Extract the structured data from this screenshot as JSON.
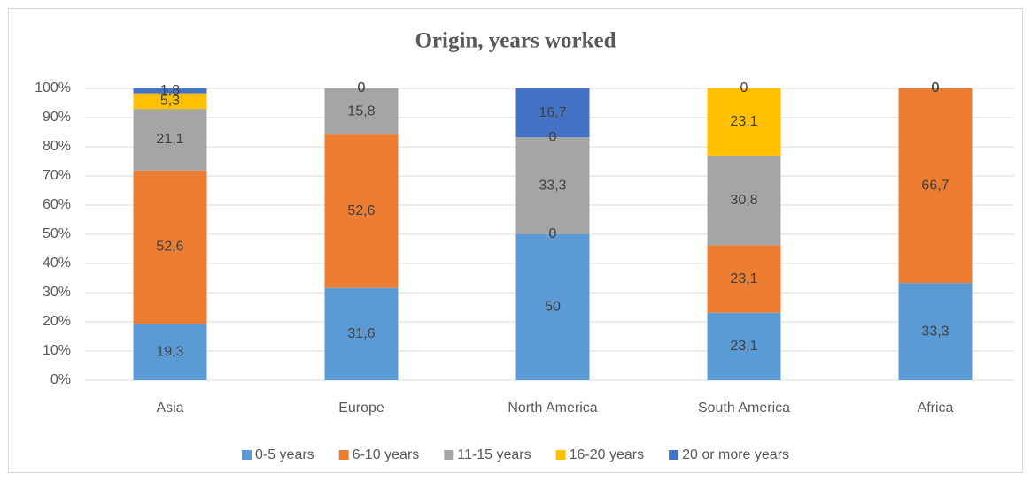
{
  "chart_data": {
    "type": "stacked_bar",
    "title": "Origin, years worked",
    "categories": [
      "Asia",
      "Europe",
      "North America",
      "South America",
      "Africa"
    ],
    "series": [
      {
        "name": "0-5 years",
        "color": "#5b9bd5",
        "values": [
          19.3,
          31.6,
          50,
          23.1,
          33.3
        ],
        "value_labels": [
          "19,3",
          "31,6",
          "50",
          "23,1",
          "33,3"
        ]
      },
      {
        "name": "6-10 years",
        "color": "#ed7d31",
        "values": [
          52.6,
          52.6,
          0,
          23.1,
          66.7
        ],
        "value_labels": [
          "52,6",
          "52,6",
          "0",
          "23,1",
          "66,7"
        ]
      },
      {
        "name": "11-15 years",
        "color": "#a5a5a5",
        "values": [
          21.1,
          15.8,
          33.3,
          30.8,
          0
        ],
        "value_labels": [
          "21,1",
          "15,8",
          "33,3",
          "30,8",
          "0"
        ]
      },
      {
        "name": "16-20 years",
        "color": "#ffc000",
        "values": [
          5.3,
          0,
          0,
          23.1,
          0
        ],
        "value_labels": [
          "5,3",
          "0",
          "0",
          "23,1",
          "0"
        ]
      },
      {
        "name": "20 or more years",
        "color": "#4472c4",
        "values": [
          1.8,
          0,
          16.7,
          0,
          0
        ],
        "value_labels": [
          "1,8",
          "0",
          "16,7",
          "0",
          "0"
        ]
      }
    ],
    "ylim": [
      0,
      100
    ],
    "yticks": [
      {
        "value": 0,
        "label": "0%"
      },
      {
        "value": 10,
        "label": "10%"
      },
      {
        "value": 20,
        "label": "20%"
      },
      {
        "value": 30,
        "label": "30%"
      },
      {
        "value": 40,
        "label": "40%"
      },
      {
        "value": 50,
        "label": "50%"
      },
      {
        "value": 60,
        "label": "60%"
      },
      {
        "value": 70,
        "label": "70%"
      },
      {
        "value": 80,
        "label": "80%"
      },
      {
        "value": 90,
        "label": "90%"
      },
      {
        "value": 100,
        "label": "100%"
      }
    ],
    "grid": true,
    "legend": "bottom"
  }
}
